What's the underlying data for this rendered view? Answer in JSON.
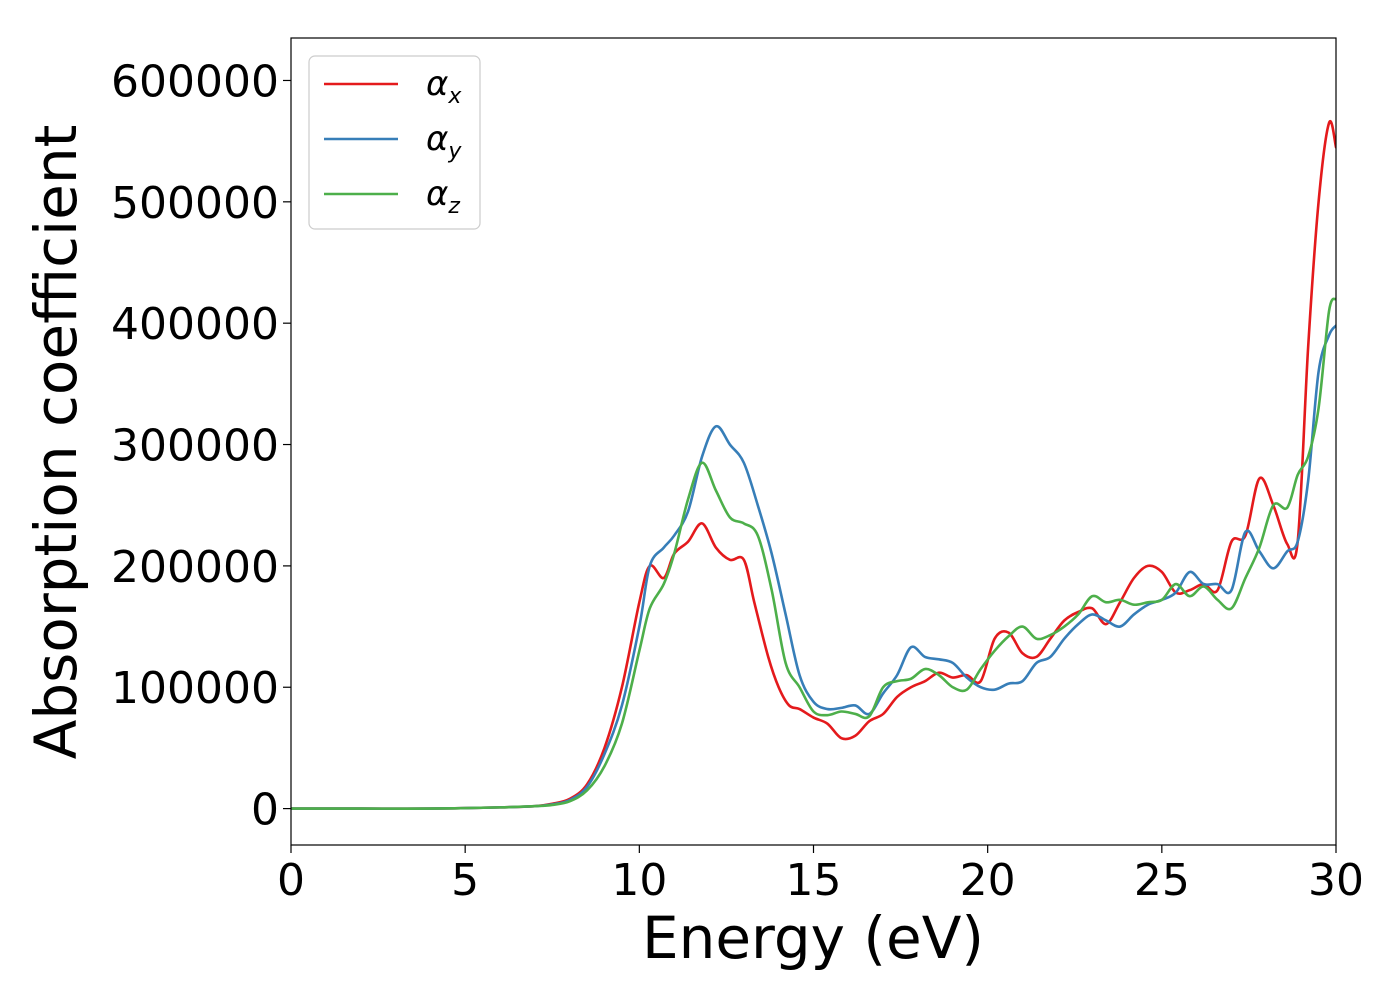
{
  "chart_data": {
    "type": "line",
    "xlabel": "Energy (eV)",
    "ylabel": "Absorption coefficient",
    "xlim": [
      0,
      30
    ],
    "ylim": [
      -30000,
      635000
    ],
    "xticks": [
      0,
      5,
      10,
      15,
      20,
      25,
      30
    ],
    "yticks": [
      0,
      100000,
      200000,
      300000,
      400000,
      500000,
      600000
    ],
    "xtick_labels": [
      "0",
      "5",
      "10",
      "15",
      "20",
      "25",
      "30"
    ],
    "ytick_labels": [
      "0",
      "100000",
      "200000",
      "300000",
      "400000",
      "500000",
      "600000"
    ],
    "grid": false,
    "legend_position": "top-left",
    "series": [
      {
        "name": "α_x",
        "legend_base": "α",
        "legend_sub": "x",
        "color": "#e41a1c",
        "x": [
          0,
          2,
          4,
          6,
          7,
          7.5,
          8,
          8.5,
          9,
          9.5,
          10,
          10.3,
          10.7,
          11,
          11.4,
          11.8,
          12.2,
          12.6,
          13.0,
          13.3,
          13.7,
          14.0,
          14.3,
          14.6,
          15.0,
          15.4,
          15.8,
          16.2,
          16.6,
          17.0,
          17.4,
          17.8,
          18.2,
          18.6,
          19.0,
          19.4,
          19.8,
          20.2,
          20.6,
          21.0,
          21.4,
          21.8,
          22.2,
          22.6,
          23.0,
          23.4,
          23.8,
          24.2,
          24.6,
          25.0,
          25.4,
          25.8,
          26.2,
          26.6,
          27.0,
          27.4,
          27.8,
          28.2,
          28.6,
          28.9,
          29.2,
          29.5,
          29.8,
          30.0
        ],
        "y": [
          0,
          0,
          0,
          1000,
          2000,
          4000,
          8000,
          20000,
          50000,
          100000,
          170000,
          200000,
          190000,
          210000,
          220000,
          235000,
          215000,
          205000,
          205000,
          170000,
          125000,
          100000,
          85000,
          82000,
          75000,
          70000,
          58000,
          60000,
          72000,
          78000,
          92000,
          100000,
          105000,
          112000,
          108000,
          110000,
          105000,
          140000,
          145000,
          128000,
          125000,
          140000,
          155000,
          162000,
          165000,
          152000,
          170000,
          190000,
          200000,
          195000,
          178000,
          180000,
          185000,
          180000,
          220000,
          225000,
          272000,
          250000,
          218000,
          220000,
          380000,
          500000,
          565000,
          545000
        ]
      },
      {
        "name": "α_y",
        "legend_base": "α",
        "legend_sub": "y",
        "color": "#377eb8",
        "x": [
          0,
          2,
          4,
          6,
          7,
          7.5,
          8,
          8.5,
          9,
          9.5,
          10,
          10.3,
          10.7,
          11,
          11.4,
          11.8,
          12.2,
          12.6,
          13.0,
          13.4,
          13.8,
          14.2,
          14.6,
          15.0,
          15.4,
          15.8,
          16.2,
          16.6,
          17.0,
          17.4,
          17.8,
          18.2,
          18.6,
          19.0,
          19.4,
          19.8,
          20.2,
          20.6,
          21.0,
          21.4,
          21.8,
          22.2,
          22.6,
          23.0,
          23.4,
          23.8,
          24.2,
          24.6,
          25.0,
          25.4,
          25.8,
          26.2,
          26.6,
          27.0,
          27.4,
          27.8,
          28.2,
          28.6,
          28.9,
          29.2,
          29.5,
          29.8,
          30.0
        ],
        "y": [
          0,
          0,
          0,
          1000,
          2000,
          3500,
          7000,
          18000,
          45000,
          85000,
          150000,
          200000,
          215000,
          225000,
          245000,
          290000,
          315000,
          300000,
          285000,
          250000,
          210000,
          160000,
          110000,
          88000,
          82000,
          83000,
          85000,
          78000,
          95000,
          110000,
          133000,
          125000,
          123000,
          120000,
          108000,
          100000,
          98000,
          103000,
          105000,
          120000,
          125000,
          140000,
          152000,
          160000,
          155000,
          150000,
          160000,
          168000,
          172000,
          178000,
          195000,
          185000,
          185000,
          180000,
          228000,
          212000,
          198000,
          212000,
          220000,
          270000,
          360000,
          390000,
          398000
        ]
      },
      {
        "name": "α_z",
        "legend_base": "α",
        "legend_sub": "z",
        "color": "#4daf4a",
        "x": [
          0,
          2,
          4,
          6,
          7,
          7.5,
          8,
          8.5,
          9,
          9.5,
          10,
          10.3,
          10.7,
          11,
          11.4,
          11.8,
          12.2,
          12.6,
          13.0,
          13.4,
          13.8,
          14.2,
          14.6,
          15.0,
          15.4,
          15.8,
          16.2,
          16.6,
          17.0,
          17.4,
          17.8,
          18.2,
          18.6,
          19.0,
          19.4,
          19.8,
          20.2,
          20.6,
          21.0,
          21.4,
          21.8,
          22.2,
          22.6,
          23.0,
          23.4,
          23.8,
          24.2,
          24.6,
          25.0,
          25.4,
          25.8,
          26.2,
          26.6,
          27.0,
          27.4,
          27.8,
          28.2,
          28.6,
          28.9,
          29.2,
          29.5,
          29.8,
          30.0
        ],
        "y": [
          0,
          0,
          0,
          1000,
          2000,
          3000,
          6000,
          15000,
          35000,
          70000,
          130000,
          165000,
          185000,
          210000,
          255000,
          285000,
          262000,
          240000,
          235000,
          225000,
          180000,
          120000,
          100000,
          80000,
          77000,
          80000,
          78000,
          76000,
          100000,
          105000,
          107000,
          115000,
          110000,
          100000,
          98000,
          115000,
          130000,
          142000,
          150000,
          140000,
          143000,
          150000,
          160000,
          175000,
          170000,
          172000,
          168000,
          170000,
          172000,
          185000,
          175000,
          183000,
          172000,
          165000,
          190000,
          215000,
          250000,
          248000,
          275000,
          290000,
          330000,
          410000,
          420000
        ]
      }
    ]
  }
}
